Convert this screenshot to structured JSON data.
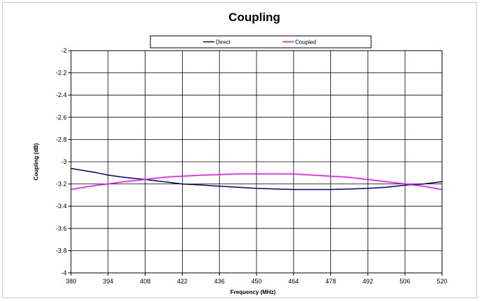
{
  "chart_data": {
    "type": "line",
    "title": "Coupling",
    "xlabel": "Frequency (MHz)",
    "ylabel": "Coupling (dB)",
    "xlim": [
      380,
      520
    ],
    "ylim": [
      -4,
      -2
    ],
    "x_ticks": [
      "380",
      "394",
      "408",
      "422",
      "436",
      "450",
      "464",
      "478",
      "492",
      "506",
      "520"
    ],
    "y_ticks": [
      "-2",
      "-2.2",
      "-2.4",
      "-2.6",
      "-2.8",
      "-3",
      "-3.2",
      "-3.4",
      "-3.6",
      "-3.8",
      "-4"
    ],
    "grid": true,
    "legend_position": "top-center",
    "x": [
      380,
      385,
      390,
      394,
      400,
      408,
      415,
      422,
      430,
      436,
      443,
      450,
      457,
      464,
      471,
      478,
      485,
      492,
      499,
      506,
      513,
      520
    ],
    "series": [
      {
        "name": "Direct",
        "color": "#000080",
        "values": [
          -3.06,
          -3.08,
          -3.1,
          -3.12,
          -3.14,
          -3.16,
          -3.18,
          -3.2,
          -3.21,
          -3.22,
          -3.23,
          -3.24,
          -3.245,
          -3.25,
          -3.25,
          -3.25,
          -3.245,
          -3.24,
          -3.23,
          -3.21,
          -3.2,
          -3.18
        ]
      },
      {
        "name": "Coupled",
        "color": "#ff00ff",
        "values": [
          -3.25,
          -3.23,
          -3.21,
          -3.2,
          -3.18,
          -3.16,
          -3.14,
          -3.13,
          -3.12,
          -3.115,
          -3.11,
          -3.11,
          -3.11,
          -3.11,
          -3.12,
          -3.13,
          -3.14,
          -3.16,
          -3.18,
          -3.2,
          -3.22,
          -3.25
        ]
      }
    ]
  }
}
